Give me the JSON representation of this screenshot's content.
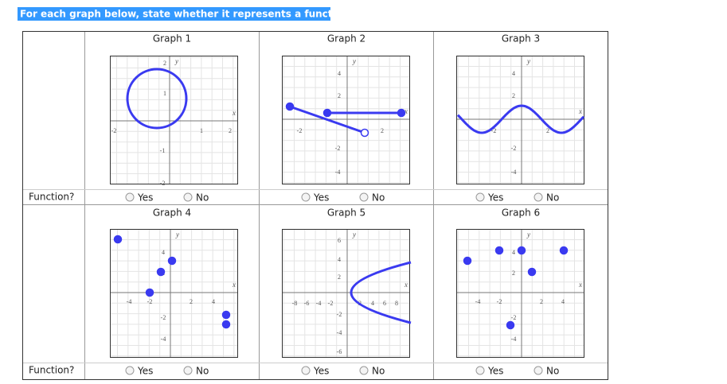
{
  "instruction": "For each graph below, state whether it represents a function.",
  "rows": [
    {
      "label": "Function?"
    },
    {
      "label": "Function?"
    }
  ],
  "graphs": [
    {
      "title": "Graph 1",
      "axis_labels": [
        "y",
        "x"
      ],
      "ticks": [
        "2",
        "1",
        "-2",
        "1",
        "2",
        "-1",
        "-2"
      ],
      "options": [
        "Yes",
        "No"
      ]
    },
    {
      "title": "Graph 2",
      "axis_labels": [
        "y",
        "x"
      ],
      "ticks": [
        "4",
        "2",
        "-2",
        "2",
        "-2",
        "-4"
      ],
      "options": [
        "Yes",
        "No"
      ]
    },
    {
      "title": "Graph 3",
      "axis_labels": [
        "y",
        "x"
      ],
      "ticks": [
        "4",
        "2",
        "-2",
        "2",
        "-2",
        "-4"
      ],
      "options": [
        "Yes",
        "No"
      ]
    },
    {
      "title": "Graph 4",
      "axis_labels": [
        "y",
        "x"
      ],
      "ticks": [
        "4",
        "2",
        "-4",
        "-2",
        "2",
        "4",
        "-2",
        "-4"
      ],
      "options": [
        "Yes",
        "No"
      ]
    },
    {
      "title": "Graph 5",
      "axis_labels": [
        "y",
        "x"
      ],
      "ticks": [
        "6",
        "4",
        "2",
        "-8",
        "-6",
        "-4",
        "-2",
        "2",
        "4",
        "6",
        "8",
        "-2",
        "-4",
        "-6"
      ],
      "options": [
        "Yes",
        "No"
      ]
    },
    {
      "title": "Graph 6",
      "axis_labels": [
        "y",
        "x"
      ],
      "ticks": [
        "4",
        "2",
        "-4",
        "-2",
        "2",
        "4",
        "-2",
        "-4"
      ],
      "options": [
        "Yes",
        "No"
      ]
    }
  ]
}
